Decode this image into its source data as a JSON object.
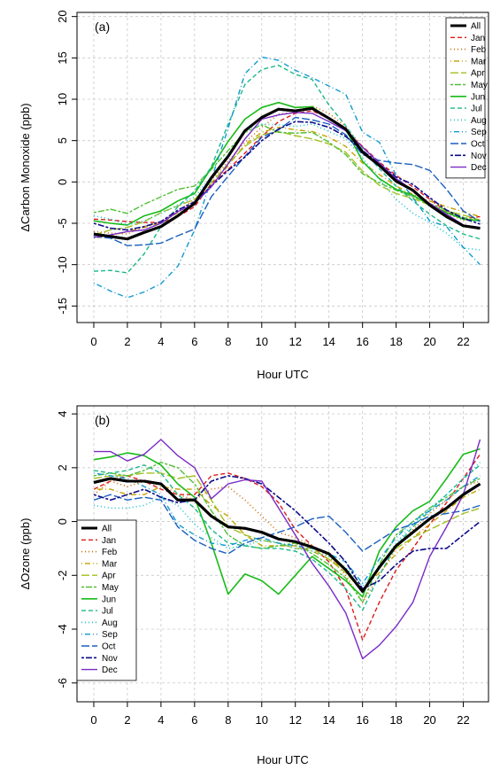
{
  "chart_data": [
    {
      "type": "line",
      "panel_label": "(a)",
      "xlabel": "Hour UTC",
      "ylabel": "ΔCarbon Monoxide (ppb)",
      "xlim": [
        -1,
        23.5
      ],
      "ylim": [
        -17,
        20.5
      ],
      "xticks": [
        0,
        2,
        4,
        6,
        8,
        10,
        12,
        14,
        16,
        18,
        20,
        22
      ],
      "yticks": [
        -15,
        -10,
        -5,
        0,
        5,
        10,
        15,
        20
      ],
      "grid": true,
      "legend_position": "top-right",
      "x": [
        0,
        1,
        2,
        3,
        4,
        5,
        6,
        7,
        8,
        9,
        10,
        11,
        12,
        13,
        14,
        15,
        16,
        17,
        18,
        19,
        20,
        21,
        22,
        23
      ],
      "series": [
        {
          "name": "All",
          "color": "#000000",
          "dash": "solid",
          "width": 3,
          "values": [
            -6.3,
            -6.6,
            -6.9,
            -6.1,
            -5.4,
            -4.1,
            -2.6,
            0.5,
            3.1,
            6.2,
            7.8,
            8.8,
            8.6,
            8.9,
            7.7,
            6.4,
            3.6,
            2.0,
            0.1,
            -1.0,
            -2.8,
            -4.2,
            -5.3,
            -5.6
          ]
        },
        {
          "name": "Jan",
          "color": "#dc1c1c",
          "dash": "dashed",
          "width": 1.4,
          "values": [
            -4.5,
            -4.6,
            -4.8,
            -4.9,
            -4.9,
            -4.2,
            -3.0,
            -0.2,
            1.5,
            3.5,
            5.5,
            7.3,
            8.3,
            8.6,
            7.7,
            6.2,
            4.3,
            2.4,
            0.8,
            -0.6,
            -2.1,
            -3.6,
            -4.4,
            -4.2
          ]
        },
        {
          "name": "Feb",
          "color": "#cc6a00",
          "dash": "dotted",
          "width": 1.6,
          "values": [
            -6.0,
            -6.2,
            -6.3,
            -5.4,
            -4.8,
            -3.6,
            -2.1,
            0.2,
            2.5,
            4.8,
            6.6,
            8.2,
            8.4,
            9.2,
            8.3,
            6.7,
            4.2,
            2.2,
            0.3,
            -1.2,
            -2.6,
            -3.8,
            -4.6,
            -4.6
          ]
        },
        {
          "name": "Mar",
          "color": "#c6a100",
          "dash": "dashdot",
          "width": 1.4,
          "values": [
            -6.8,
            -6.5,
            -6.0,
            -5.5,
            -5.0,
            -3.7,
            -2.6,
            -0.5,
            2.0,
            4.5,
            6.0,
            6.6,
            6.3,
            6.1,
            5.4,
            4.3,
            2.3,
            0.9,
            -0.5,
            -1.5,
            -2.3,
            -3.0,
            -3.6,
            -4.2
          ]
        },
        {
          "name": "Apr",
          "color": "#a2bf1e",
          "dash": "longdash",
          "width": 1.4,
          "values": [
            -6.4,
            -5.8,
            -5.5,
            -4.8,
            -3.7,
            -2.9,
            -2.1,
            -0.1,
            2.2,
            4.3,
            5.7,
            6.1,
            5.6,
            5.2,
            4.6,
            3.6,
            1.3,
            -0.4,
            -1.4,
            -2.0,
            -2.8,
            -3.5,
            -4.0,
            -4.6
          ]
        },
        {
          "name": "May",
          "color": "#52c034",
          "dash": "twodash",
          "width": 1.4,
          "values": [
            -3.7,
            -3.3,
            -3.8,
            -2.7,
            -1.8,
            -0.9,
            -0.5,
            1.5,
            3.8,
            6.0,
            6.9,
            6.0,
            5.9,
            6.0,
            4.8,
            3.3,
            1.0,
            -0.1,
            -1.0,
            -1.8,
            -2.6,
            -3.4,
            -4.3,
            -4.7
          ]
        },
        {
          "name": "Jun",
          "color": "#18bb18",
          "dash": "solid",
          "width": 1.6,
          "values": [
            -4.7,
            -5.0,
            -5.2,
            -4.1,
            -3.5,
            -2.3,
            -1.4,
            1.7,
            4.9,
            7.6,
            9.0,
            9.6,
            9.0,
            9.1,
            7.6,
            6.4,
            2.5,
            0.4,
            -0.9,
            -1.6,
            -2.8,
            -3.7,
            -4.5,
            -4.7
          ]
        },
        {
          "name": "Jul",
          "color": "#1cb88a",
          "dash": "dashed",
          "width": 1.4,
          "values": [
            -10.8,
            -10.7,
            -11.0,
            -8.7,
            -5.4,
            -3.0,
            -1.1,
            1.8,
            7.0,
            11.8,
            13.6,
            14.1,
            13.0,
            12.4,
            9.3,
            6.8,
            3.9,
            1.6,
            -0.5,
            -2.3,
            -3.9,
            -5.3,
            -6.3,
            -6.9
          ]
        },
        {
          "name": "Aug",
          "color": "#1cc0cc",
          "dash": "dotted",
          "width": 1.6,
          "values": [
            -4.1,
            -4.5,
            -5.2,
            -4.7,
            -3.8,
            -2.8,
            -1.8,
            0.6,
            3.3,
            6.2,
            7.0,
            6.9,
            6.7,
            7.0,
            6.1,
            5.2,
            2.9,
            0.3,
            -2.1,
            -3.8,
            -4.9,
            -6.2,
            -8.0,
            -8.2
          ]
        },
        {
          "name": "Sep",
          "color": "#119ad0",
          "dash": "dashdot",
          "width": 1.4,
          "values": [
            -12.2,
            -13.2,
            -14.0,
            -13.3,
            -12.3,
            -10.2,
            -5.8,
            0.3,
            6.5,
            13.1,
            15.1,
            14.7,
            13.5,
            12.6,
            11.6,
            10.6,
            6.0,
            4.8,
            0.8,
            -1.9,
            -4.7,
            -5.4,
            -7.9,
            -10.0
          ]
        },
        {
          "name": "Oct",
          "color": "#1a5fc0",
          "dash": "longdash",
          "width": 1.4,
          "values": [
            -6.6,
            -6.8,
            -7.7,
            -7.6,
            -7.4,
            -6.5,
            -5.7,
            -1.8,
            0.7,
            3.1,
            5.4,
            6.3,
            7.8,
            7.5,
            7.0,
            5.7,
            3.3,
            2.6,
            2.3,
            2.1,
            1.4,
            -0.9,
            -3.5,
            -4.8
          ]
        },
        {
          "name": "Nov",
          "color": "#0c0c8a",
          "dash": "twodash",
          "width": 1.6,
          "values": [
            -5.0,
            -5.6,
            -5.8,
            -5.4,
            -4.8,
            -3.4,
            -2.4,
            -0.5,
            1.4,
            3.0,
            5.0,
            6.4,
            7.3,
            7.2,
            6.6,
            5.5,
            3.8,
            2.2,
            0.6,
            -0.3,
            -1.9,
            -3.4,
            -4.4,
            -5.1
          ]
        },
        {
          "name": "Dec",
          "color": "#7a2bc7",
          "dash": "solid",
          "width": 1.4,
          "values": [
            -6.7,
            -6.4,
            -6.0,
            -5.8,
            -5.0,
            -3.6,
            -2.6,
            -0.6,
            2.2,
            5.2,
            7.6,
            8.1,
            8.4,
            8.3,
            7.3,
            6.2,
            4.2,
            2.3,
            0.4,
            -1.0,
            -2.6,
            -3.9,
            -5.2,
            -5.5
          ]
        }
      ]
    },
    {
      "type": "line",
      "panel_label": "(b)",
      "xlabel": "Hour UTC",
      "ylabel": "ΔOzone (ppb)",
      "xlim": [
        -1,
        23.5
      ],
      "ylim": [
        -6.7,
        4.3
      ],
      "xticks": [
        0,
        2,
        4,
        6,
        8,
        10,
        12,
        14,
        16,
        18,
        20,
        22
      ],
      "yticks": [
        -6,
        -4,
        -2,
        0,
        2,
        4
      ],
      "grid": true,
      "legend_position": "bottom-left",
      "x": [
        0,
        1,
        2,
        3,
        4,
        5,
        6,
        7,
        8,
        9,
        10,
        11,
        12,
        13,
        14,
        15,
        16,
        17,
        18,
        19,
        20,
        21,
        22,
        23
      ],
      "series": [
        {
          "name": "All",
          "color": "#000000",
          "dash": "solid",
          "width": 3,
          "values": [
            1.45,
            1.6,
            1.5,
            1.5,
            1.4,
            0.8,
            0.8,
            0.2,
            -0.2,
            -0.25,
            -0.4,
            -0.65,
            -0.75,
            -0.95,
            -1.2,
            -1.8,
            -2.6,
            -1.7,
            -0.9,
            -0.4,
            0.1,
            0.5,
            1.0,
            1.4
          ]
        },
        {
          "name": "Jan",
          "color": "#dc1c1c",
          "dash": "dashed",
          "width": 1.4,
          "values": [
            1.2,
            1.5,
            1.7,
            1.5,
            1.2,
            1.0,
            1.0,
            1.7,
            1.8,
            1.6,
            1.3,
            0.7,
            -0.3,
            -0.9,
            -1.5,
            -2.5,
            -4.4,
            -3.0,
            -1.8,
            -1.0,
            -0.1,
            0.7,
            1.6,
            2.5
          ]
        },
        {
          "name": "Feb",
          "color": "#cc6a00",
          "dash": "dotted",
          "width": 1.6,
          "values": [
            1.0,
            1.5,
            1.3,
            1.5,
            1.4,
            1.0,
            0.8,
            1.2,
            1.3,
            0.8,
            0.2,
            -0.4,
            -0.6,
            -0.9,
            -1.3,
            -2.0,
            -3.0,
            -2.0,
            -1.0,
            -0.3,
            0.3,
            0.8,
            1.3,
            1.5
          ]
        },
        {
          "name": "Mar",
          "color": "#c6a100",
          "dash": "dashdot",
          "width": 1.4,
          "values": [
            1.2,
            1.2,
            1.0,
            1.0,
            1.3,
            1.2,
            1.2,
            0.6,
            0.2,
            -0.5,
            -0.9,
            -0.9,
            -0.9,
            -1.1,
            -1.4,
            -1.8,
            -2.5,
            -1.9,
            -1.2,
            -0.6,
            -0.1,
            0.4,
            0.9,
            1.2
          ]
        },
        {
          "name": "Apr",
          "color": "#a2bf1e",
          "dash": "longdash",
          "width": 1.4,
          "values": [
            1.6,
            1.7,
            1.7,
            1.8,
            1.8,
            1.6,
            1.7,
            0.8,
            -0.2,
            -0.5,
            -0.7,
            -0.8,
            -1.0,
            -1.0,
            -1.4,
            -1.9,
            -2.6,
            -1.7,
            -1.0,
            -0.6,
            -0.3,
            0.0,
            0.3,
            0.5
          ]
        },
        {
          "name": "May",
          "color": "#52c034",
          "dash": "twodash",
          "width": 1.4,
          "values": [
            1.7,
            1.8,
            1.7,
            1.9,
            2.2,
            2.0,
            1.4,
            0.4,
            -0.5,
            -0.9,
            -1.0,
            -0.9,
            -0.8,
            -1.2,
            -1.6,
            -2.1,
            -3.0,
            -1.6,
            -0.5,
            0.0,
            0.5,
            0.9,
            1.3,
            1.6
          ]
        },
        {
          "name": "Jun",
          "color": "#18bb18",
          "dash": "solid",
          "width": 1.6,
          "values": [
            2.3,
            2.4,
            2.55,
            2.45,
            2.1,
            1.4,
            0.9,
            -0.8,
            -2.7,
            -1.95,
            -2.2,
            -2.7,
            -2.0,
            -1.3,
            -1.75,
            -2.2,
            -2.8,
            -1.1,
            -0.2,
            0.4,
            0.75,
            1.6,
            2.5,
            2.7
          ]
        },
        {
          "name": "Jul",
          "color": "#1cb88a",
          "dash": "dashed",
          "width": 1.4,
          "values": [
            1.9,
            1.8,
            1.9,
            2.1,
            1.8,
            1.0,
            0.5,
            -0.3,
            -0.8,
            -0.9,
            -1.0,
            -1.0,
            -1.1,
            -1.4,
            -1.9,
            -2.5,
            -3.3,
            -2.0,
            -0.9,
            -0.2,
            0.4,
            1.0,
            1.6,
            2.1
          ]
        },
        {
          "name": "Aug",
          "color": "#1cc0cc",
          "dash": "dotted",
          "width": 1.6,
          "values": [
            0.6,
            0.5,
            0.5,
            0.6,
            0.9,
            0.6,
            -0.1,
            -0.6,
            -1.0,
            -0.9,
            -0.7,
            -0.8,
            -1.0,
            -1.1,
            -1.3,
            -1.7,
            -2.4,
            -1.7,
            -0.8,
            -0.1,
            0.5,
            1.0,
            1.6,
            2.2
          ]
        },
        {
          "name": "Sep",
          "color": "#119ad0",
          "dash": "dashdot",
          "width": 1.4,
          "values": [
            1.8,
            1.7,
            1.6,
            1.3,
            1.0,
            -0.1,
            -0.5,
            -0.8,
            -0.9,
            -0.7,
            -0.6,
            -0.8,
            -0.9,
            -1.0,
            -1.2,
            -1.5,
            -2.3,
            -1.4,
            -0.6,
            0.0,
            0.4,
            0.8,
            1.3,
            1.7
          ]
        },
        {
          "name": "Oct",
          "color": "#1a5fc0",
          "dash": "longdash",
          "width": 1.4,
          "values": [
            0.8,
            1.0,
            0.8,
            0.9,
            0.8,
            -0.2,
            -0.7,
            -1.0,
            -1.2,
            -0.8,
            -0.6,
            -0.4,
            -0.2,
            0.1,
            0.2,
            -0.4,
            -1.1,
            -0.7,
            -0.3,
            -0.1,
            0.2,
            0.3,
            0.4,
            0.6
          ]
        },
        {
          "name": "Nov",
          "color": "#0c0c8a",
          "dash": "twodash",
          "width": 1.6,
          "values": [
            1.0,
            0.8,
            1.0,
            1.2,
            0.9,
            0.7,
            0.8,
            1.5,
            1.7,
            1.6,
            1.4,
            0.9,
            0.4,
            -0.2,
            -0.8,
            -1.5,
            -2.5,
            -2.2,
            -1.6,
            -1.1,
            -1.0,
            -1.0,
            -0.5,
            0.0
          ]
        },
        {
          "name": "Dec",
          "color": "#7a2bc7",
          "dash": "solid",
          "width": 1.4,
          "values": [
            2.6,
            2.6,
            2.25,
            2.5,
            3.05,
            2.45,
            2.0,
            0.85,
            1.4,
            1.55,
            1.5,
            0.5,
            -0.5,
            -1.55,
            -2.4,
            -3.4,
            -5.1,
            -4.6,
            -3.9,
            -3.0,
            -1.3,
            -0.2,
            1.0,
            3.05
          ]
        }
      ]
    }
  ]
}
